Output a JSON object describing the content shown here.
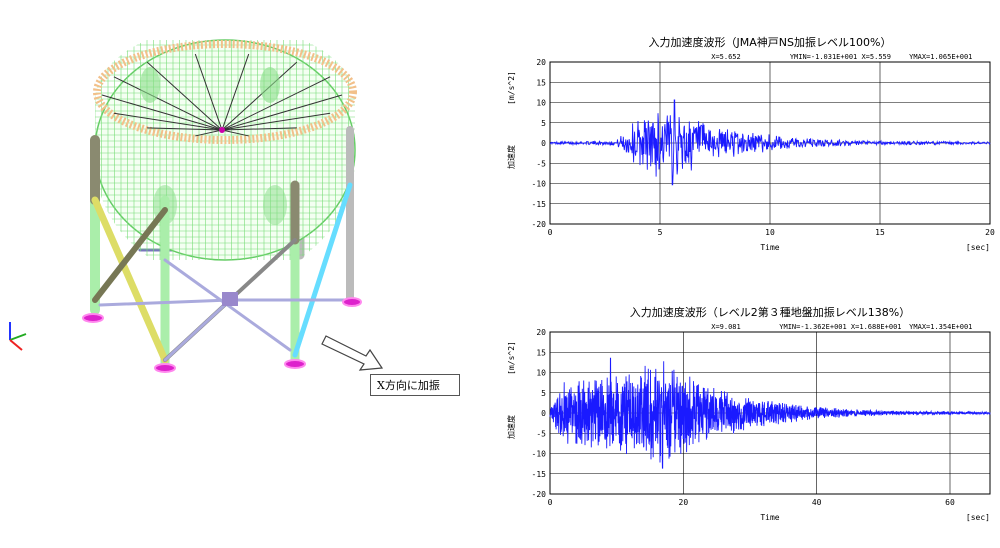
{
  "callout": {
    "text": "X方向に加振"
  },
  "colors": {
    "wave": "#1a1aff",
    "grid": "#000000",
    "mesh": "#55dd55"
  },
  "chart_data": [
    {
      "type": "line",
      "title": "入力加速度波形（JMA神戸NS加振レベル100%）",
      "info": [
        "X=5.652",
        "YMIN=-1.031E+001 X=5.559",
        "YMAX=1.065E+001"
      ],
      "xlabel": "Time",
      "xunit": "[sec]",
      "ylabel": "加速度",
      "yunit": "[m/s^2]",
      "xlim": [
        0,
        20
      ],
      "ylim": [
        -20,
        20
      ],
      "xticks": [
        0,
        5,
        10,
        15,
        20
      ],
      "yticks": [
        20,
        15,
        10,
        5,
        0,
        -5,
        -10,
        -15,
        -20
      ],
      "grid": true,
      "envelope": {
        "segments": [
          [
            0,
            0.3
          ],
          [
            3,
            0.6
          ],
          [
            3.9,
            6
          ],
          [
            5.5,
            10.5
          ],
          [
            7,
            5
          ],
          [
            9,
            3
          ],
          [
            11,
            1.5
          ],
          [
            14,
            0.6
          ],
          [
            20,
            0.3
          ]
        ],
        "ymin": -10.31,
        "ymax": 10.65,
        "x_at_min": 5.559,
        "x_at_max": 5.652
      }
    },
    {
      "type": "line",
      "title": "入力加速度波形（レベル2第３種地盤加振レベル138%）",
      "info": [
        "X=9.081",
        "YMIN=-1.362E+001 X=1.688E+001",
        "YMAX=1.354E+001"
      ],
      "xlabel": "Time",
      "xunit": "[sec]",
      "ylabel": "加速度",
      "yunit": "[m/s^2]",
      "xlim": [
        0,
        66
      ],
      "ylim": [
        -20,
        20
      ],
      "xticks": [
        0,
        20,
        40,
        60
      ],
      "yticks": [
        20,
        15,
        10,
        5,
        0,
        -5,
        -10,
        -15,
        -20
      ],
      "grid": true,
      "envelope": {
        "segments": [
          [
            0,
            1
          ],
          [
            2,
            8
          ],
          [
            10,
            10
          ],
          [
            17,
            13.5
          ],
          [
            22,
            8
          ],
          [
            30,
            4
          ],
          [
            40,
            1.5
          ],
          [
            50,
            0.6
          ],
          [
            66,
            0.3
          ]
        ],
        "ymin": -13.62,
        "ymax": 13.54,
        "x_at_min": 16.88,
        "x_at_max": 9.081
      }
    }
  ]
}
